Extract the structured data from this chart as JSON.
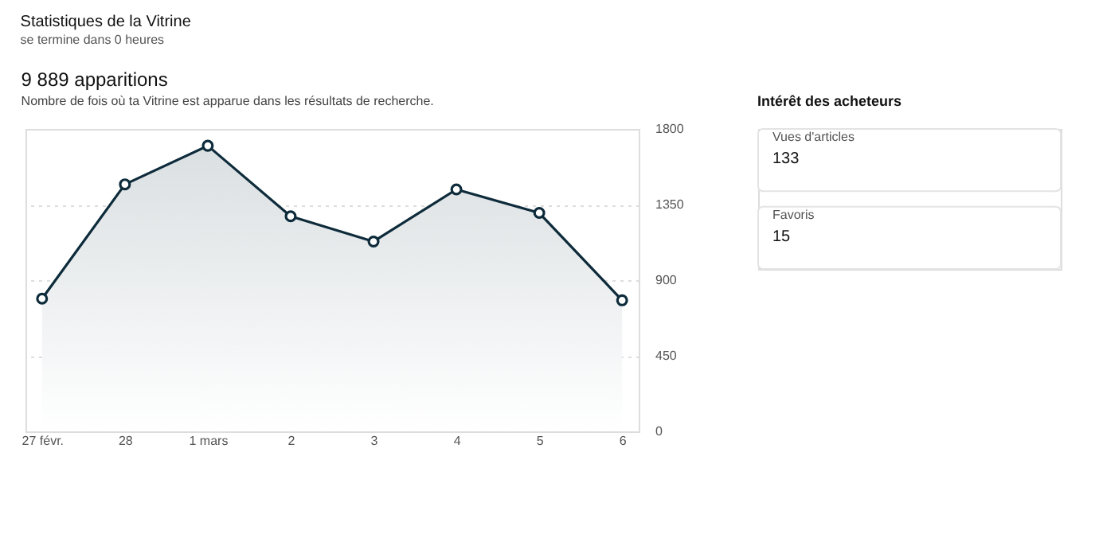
{
  "chart_data": [
    {
      "type": "area",
      "title": "Statistiques de la Vitrine",
      "subtitle": "se termine dans 0 heures",
      "annotations": [
        "9 889 apparitions",
        "Nombre de fois où ta Vitrine est apparue dans les résultats de recherche."
      ],
      "categories": [
        "27 févr.",
        "28",
        "1 mars",
        "2",
        "3",
        "4",
        "5",
        "6"
      ],
      "series": [
        {
          "color": "#0d2b3a",
          "values": [
            790,
            1470,
            1700,
            1280,
            1130,
            1440,
            1300,
            780
          ]
        }
      ],
      "ylim": [
        0,
        1800
      ],
      "yticks": [
        0,
        450,
        900,
        1350,
        1800
      ],
      "grid": "y",
      "marker": "circle",
      "line_style": "solid"
    },
    {
      "type": "other",
      "title": "Intérêt des acheteurs",
      "categories": [
        "Vues d'articles",
        "Favoris"
      ],
      "values": [
        133,
        15
      ],
      "data_labels": true
    }
  ]
}
